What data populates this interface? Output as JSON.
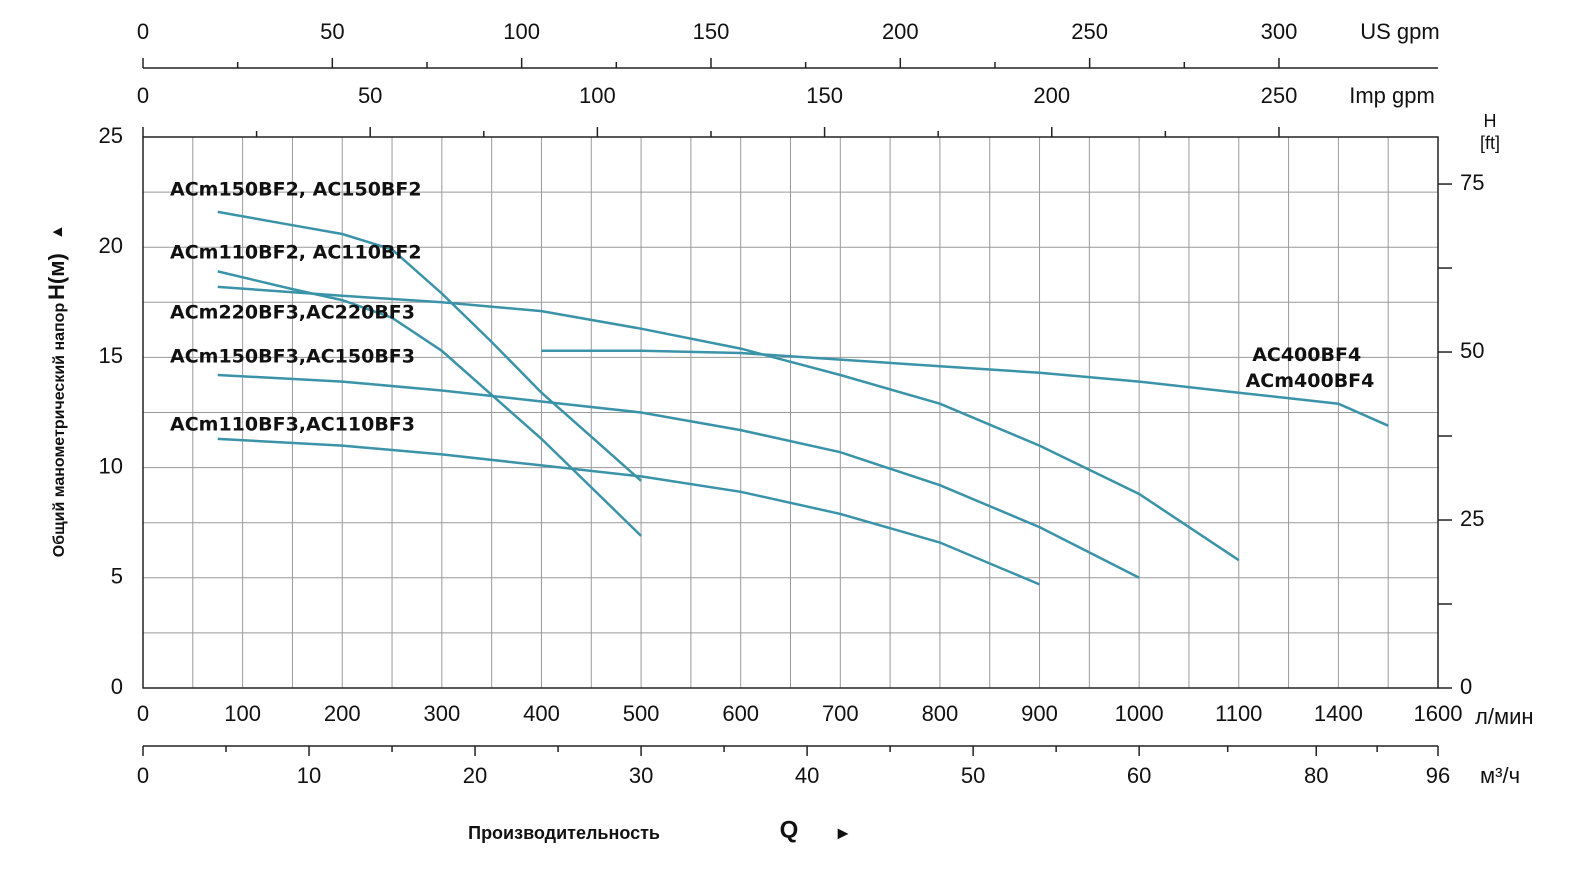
{
  "chart_data": {
    "type": "line",
    "ylabel": [
      "Общий манометрический напор",
      "H(м)",
      "▲"
    ],
    "xlabel": [
      "Производительность",
      "Q",
      "►"
    ],
    "x_unit": "л/мин",
    "xlim": [
      0,
      1600
    ],
    "xticks": [
      0,
      100,
      200,
      300,
      400,
      500,
      600,
      700,
      800,
      900,
      1000,
      1100,
      1400,
      1600
    ],
    "ylim": [
      0,
      25
    ],
    "yticks": [
      0,
      5,
      10,
      15,
      20,
      25
    ],
    "y2label": [
      "H",
      "[ft]"
    ],
    "y2lim": [
      0,
      82
    ],
    "y2ticks": [
      0,
      25,
      50,
      75
    ],
    "grid": true,
    "color": "#3a93a8",
    "extra_x_axes": [
      {
        "unit": "US gpm",
        "xlim": [
          0,
          342
        ],
        "xticks": [
          0,
          50,
          100,
          150,
          200,
          250,
          300
        ]
      },
      {
        "unit": "Imp gpm",
        "xlim": [
          0,
          285
        ],
        "xticks": [
          0,
          50,
          100,
          150,
          200,
          250
        ]
      },
      {
        "unit": "м³/ч",
        "xlim": [
          0,
          96
        ],
        "xticks": [
          0,
          10,
          20,
          30,
          40,
          50,
          60,
          80,
          96
        ]
      }
    ],
    "series": [
      {
        "name": "ACm150BF2, AC150BF2",
        "x": [
          75,
          150,
          200,
          250,
          300,
          350,
          400,
          450,
          500
        ],
        "values": [
          21.6,
          21.0,
          20.6,
          19.9,
          17.9,
          15.7,
          13.4,
          11.4,
          9.4
        ]
      },
      {
        "name": "ACm110BF2, AC110BF2",
        "x": [
          75,
          150,
          200,
          250,
          300,
          350,
          400,
          450,
          500
        ],
        "values": [
          18.9,
          18.1,
          17.6,
          16.8,
          15.3,
          13.3,
          11.3,
          9.1,
          6.9
        ]
      },
      {
        "name": "ACm220BF3,AC220BF3",
        "x": [
          75,
          200,
          300,
          400,
          500,
          600,
          700,
          800,
          900,
          1000,
          1100
        ],
        "values": [
          18.2,
          17.8,
          17.5,
          17.1,
          16.3,
          15.4,
          14.2,
          12.9,
          11.0,
          8.8,
          5.8
        ]
      },
      {
        "name": "ACm150BF3,AC150BF3",
        "x": [
          75,
          200,
          300,
          400,
          500,
          600,
          700,
          800,
          900,
          1000
        ],
        "values": [
          14.2,
          13.9,
          13.5,
          13.0,
          12.5,
          11.7,
          10.7,
          9.2,
          7.3,
          5.0
        ]
      },
      {
        "name": "ACm110BF3,AC110BF3",
        "x": [
          75,
          200,
          300,
          400,
          500,
          600,
          700,
          800,
          900
        ],
        "values": [
          11.3,
          11.0,
          10.6,
          10.1,
          9.6,
          8.9,
          7.9,
          6.6,
          4.7
        ]
      },
      {
        "name": "AC400BF4 ACm400BF4",
        "x": [
          400,
          500,
          600,
          700,
          800,
          900,
          1000,
          1100,
          1400,
          1500
        ],
        "values": [
          15.3,
          15.3,
          15.2,
          14.9,
          14.6,
          14.3,
          13.9,
          13.4,
          12.9,
          11.9
        ]
      }
    ]
  }
}
